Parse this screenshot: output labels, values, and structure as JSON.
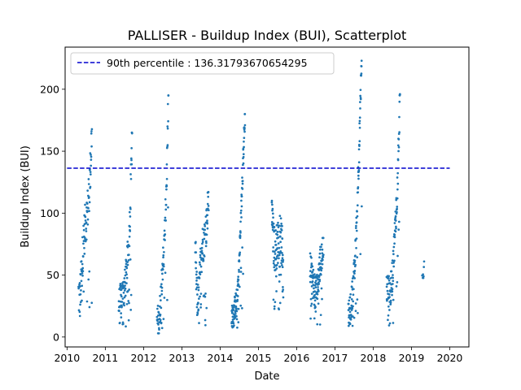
{
  "chart_data": {
    "type": "scatter",
    "title": "PALLISER - Buildup Index (BUI), Scatterplot",
    "xlabel": "Date",
    "ylabel": "Buildup Index (BUI)",
    "xlim": [
      2009.95,
      2020.5
    ],
    "ylim": [
      -8,
      234
    ],
    "x_ticks": [
      "2010",
      "2011",
      "2012",
      "2013",
      "2014",
      "2015",
      "2016",
      "2017",
      "2018",
      "2019",
      "2020"
    ],
    "y_ticks": [
      "0",
      "50",
      "100",
      "150",
      "200"
    ],
    "point_color": "#1f77b4",
    "reference_line": {
      "label": "90th percentile : 136.31793670654295",
      "value": 136.31793670654295,
      "x_start": "2010",
      "x_end": "2020",
      "color": "#0000cd",
      "style": "dashed"
    },
    "legend_position": "upper-left",
    "series": [
      {
        "seasons": [
          {
            "year": 2010,
            "start": 2010.3,
            "end": 2010.65,
            "ramp": [
              [
                0,
                35
              ],
              [
                0.1,
                30
              ],
              [
                0.2,
                45
              ],
              [
                0.35,
                75
              ],
              [
                0.5,
                90
              ],
              [
                0.65,
                100
              ],
              [
                0.8,
                115
              ],
              [
                0.9,
                140
              ],
              [
                1.0,
                168
              ]
            ],
            "min": 16,
            "spread": 18,
            "n": 95
          },
          {
            "year": 2011,
            "start": 2011.35,
            "end": 2011.7,
            "ramp": [
              [
                0,
                25
              ],
              [
                0.15,
                30
              ],
              [
                0.3,
                35
              ],
              [
                0.45,
                40
              ],
              [
                0.6,
                55
              ],
              [
                0.75,
                75
              ],
              [
                0.85,
                100
              ],
              [
                1.0,
                165
              ]
            ],
            "min": 6,
            "spread": 14,
            "n": 105
          },
          {
            "year": 2012,
            "start": 2012.35,
            "end": 2012.65,
            "ramp": [
              [
                0,
                15
              ],
              [
                0.15,
                10
              ],
              [
                0.3,
                25
              ],
              [
                0.45,
                55
              ],
              [
                0.6,
                65
              ],
              [
                0.75,
                100
              ],
              [
                0.85,
                130
              ],
              [
                1.0,
                195
              ]
            ],
            "min": 3,
            "spread": 14,
            "n": 85
          },
          {
            "year": 2013,
            "start": 2013.35,
            "end": 2013.7,
            "ramp": [
              [
                0,
                75
              ],
              [
                0.1,
                40
              ],
              [
                0.25,
                30
              ],
              [
                0.4,
                60
              ],
              [
                0.55,
                75
              ],
              [
                0.7,
                80
              ],
              [
                0.85,
                90
              ],
              [
                1.0,
                117
              ]
            ],
            "min": 9,
            "spread": 16,
            "n": 110
          },
          {
            "year": 2014,
            "start": 2014.3,
            "end": 2014.65,
            "ramp": [
              [
                0,
                15
              ],
              [
                0.2,
                22
              ],
              [
                0.4,
                30
              ],
              [
                0.55,
                55
              ],
              [
                0.7,
                95
              ],
              [
                0.85,
                140
              ],
              [
                1.0,
                180
              ]
            ],
            "min": 7,
            "spread": 10,
            "n": 120
          },
          {
            "year": 2015,
            "start": 2015.35,
            "end": 2015.65,
            "ramp": [
              [
                0,
                110
              ],
              [
                0.15,
                75
              ],
              [
                0.3,
                70
              ],
              [
                0.5,
                75
              ],
              [
                0.7,
                85
              ],
              [
                0.85,
                75
              ],
              [
                1.0,
                65
              ]
            ],
            "min": 21,
            "spread": 18,
            "n": 110
          },
          {
            "year": 2016,
            "start": 2016.35,
            "end": 2016.7,
            "ramp": [
              [
                0,
                55
              ],
              [
                0.2,
                45
              ],
              [
                0.4,
                35
              ],
              [
                0.55,
                40
              ],
              [
                0.7,
                55
              ],
              [
                0.85,
                65
              ],
              [
                1.0,
                80
              ]
            ],
            "min": 10,
            "spread": 14,
            "n": 120
          },
          {
            "year": 2017,
            "start": 2017.35,
            "end": 2017.7,
            "ramp": [
              [
                0,
                15
              ],
              [
                0.2,
                25
              ],
              [
                0.35,
                40
              ],
              [
                0.5,
                60
              ],
              [
                0.65,
                100
              ],
              [
                0.8,
                150
              ],
              [
                1.0,
                223
              ]
            ],
            "min": 9,
            "spread": 12,
            "n": 115
          },
          {
            "year": 2018,
            "start": 2018.35,
            "end": 2018.7,
            "ramp": [
              [
                0,
                40
              ],
              [
                0.2,
                35
              ],
              [
                0.35,
                40
              ],
              [
                0.5,
                60
              ],
              [
                0.65,
                90
              ],
              [
                0.8,
                120
              ],
              [
                1.0,
                196
              ]
            ],
            "min": 9,
            "spread": 14,
            "n": 110
          },
          {
            "year": 2019,
            "start": 2019.28,
            "end": 2019.33,
            "ramp": [
              [
                0,
                48
              ],
              [
                0.5,
                52
              ],
              [
                1.0,
                61
              ]
            ],
            "min": 46,
            "spread": 4,
            "n": 8
          }
        ]
      }
    ]
  }
}
